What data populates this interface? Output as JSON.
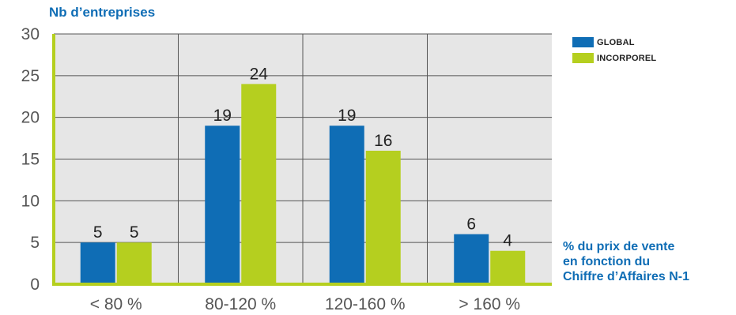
{
  "chart_data": {
    "type": "bar",
    "ylabel": "Nb d’entreprises",
    "xlabel_lines": [
      "% du prix de vente",
      "en fonction du",
      "Chiffre d’Affaires N-1"
    ],
    "categories": [
      "< 80 %",
      "80-120 %",
      "120-160 %",
      "> 160 %"
    ],
    "series": [
      {
        "name": "GLOBAL",
        "color": "#0f6db5",
        "values": [
          5,
          19,
          19,
          6
        ]
      },
      {
        "name": "INCORPOREL",
        "color": "#b5cf1f",
        "values": [
          5,
          24,
          16,
          4
        ]
      }
    ],
    "ylim": [
      0,
      30
    ],
    "yticks": [
      0,
      5,
      10,
      15,
      20,
      25,
      30
    ],
    "grid": true,
    "legend_position": "top-right",
    "plot_background": "#e6e6e6",
    "axis_color": "#b5cf1f"
  }
}
